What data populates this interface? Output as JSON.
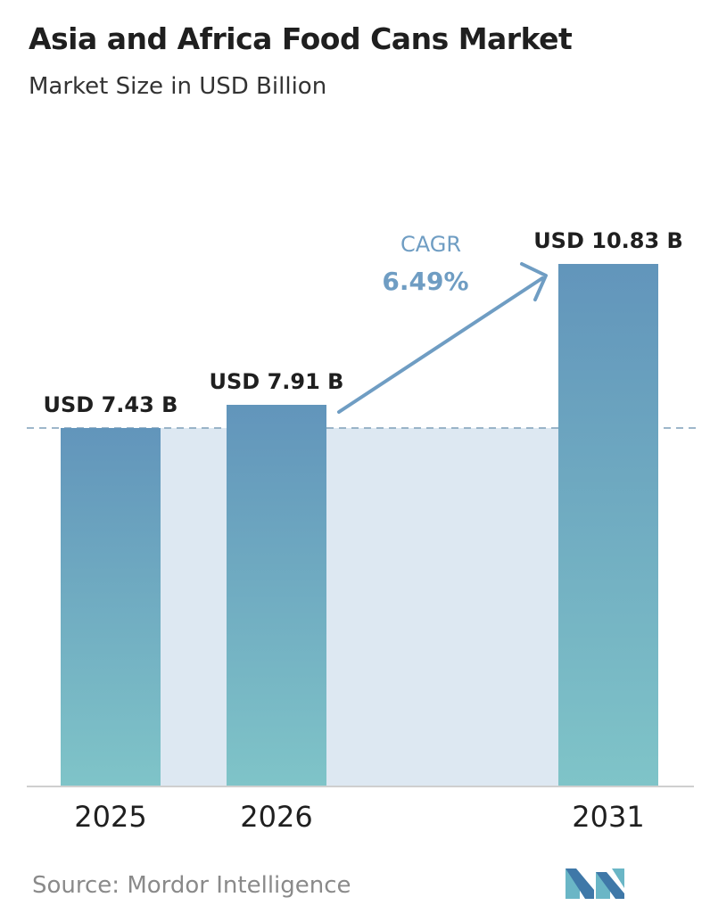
{
  "header": {
    "title": "Asia and Africa Food Cans Market",
    "subtitle": "Market Size in USD Billion"
  },
  "colors": {
    "bar_top": "#6295bb",
    "bar_bottom": "#7fc4c8",
    "band": "#dde8f2",
    "arrow": "#6f9dc3",
    "dashed_line": "#7f9fb8",
    "axis": "#cfcfcf"
  },
  "cagr": {
    "label": "CAGR",
    "value": "6.49%"
  },
  "footer": {
    "source": "Source:  Mordor Intelligence",
    "logo_icon": "mordor-intelligence-logo-icon"
  },
  "chart_data": {
    "type": "bar",
    "title": "Asia and Africa Food Cans Market",
    "subtitle": "Market Size in USD Billion",
    "xlabel": "",
    "ylabel": "",
    "categories": [
      "2025",
      "2026",
      "2031"
    ],
    "values": [
      7.43,
      7.91,
      10.83
    ],
    "data_labels": [
      "USD 7.43 B",
      "USD 7.91 B",
      "USD 10.83 B"
    ],
    "ylim": [
      0,
      10.83
    ],
    "grid": false,
    "legend": "none"
  }
}
